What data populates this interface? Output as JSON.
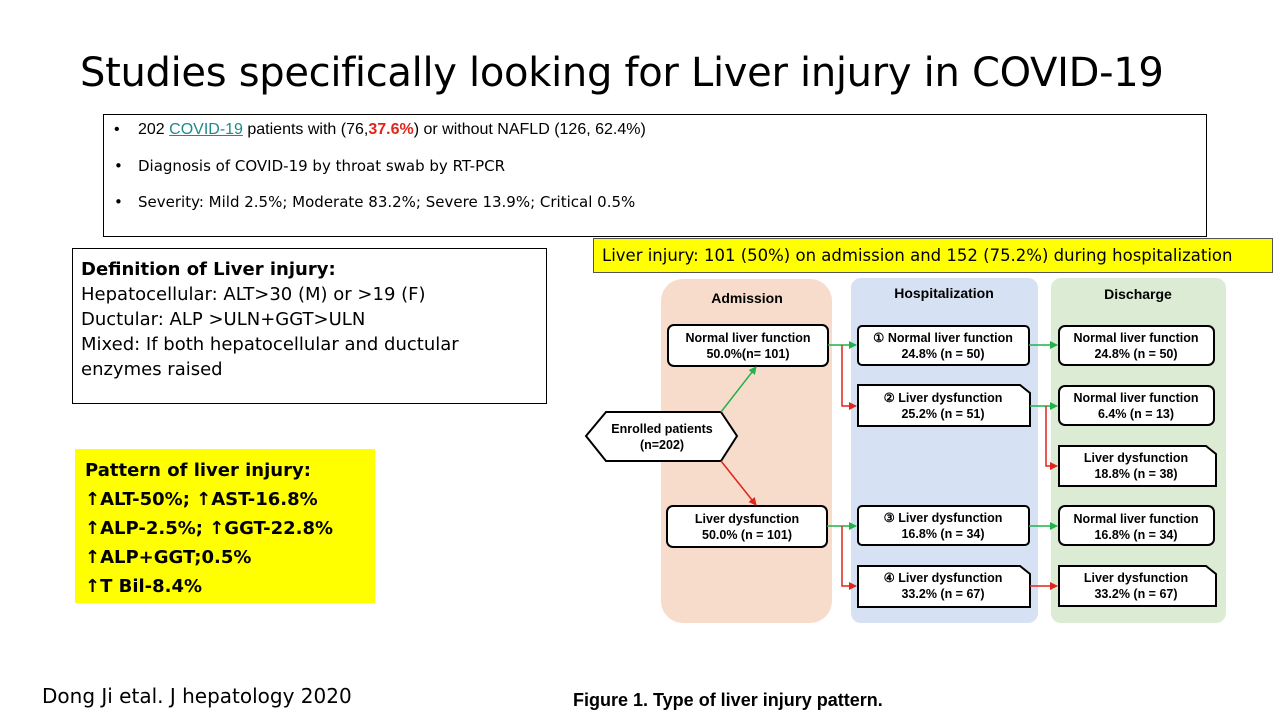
{
  "title": "Studies specifically looking for Liver injury in COVID-19",
  "intro": {
    "line1_pre": "202 ",
    "line1_link": "COVID-19",
    "line1_mid": " patients with (76,",
    "line1_red": "37.6%",
    "line1_post": ") or without NAFLD (126, 62.4%)",
    "line2": "Diagnosis of COVID-19 by throat swab by RT-PCR",
    "line3": "Severity: Mild 2.5%; Moderate 83.2%; Severe 13.9%; Critical 0.5%",
    "bullet": "•"
  },
  "definition": {
    "heading": "Definition of Liver injury:",
    "lines": [
      "Hepatocellular: ALT>30 (M) or >19 (F)",
      "Ductular: ALP >ULN+GGT>ULN",
      "Mixed: If both hepatocellular and ductular enzymes raised"
    ]
  },
  "pattern": {
    "heading": "Pattern of liver injury:",
    "lines": [
      "↑ALT-50%; ↑AST-16.8%",
      "↑ALP-2.5%; ↑GGT-22.8%",
      "↑ALP+GGT;0.5%",
      "↑T Bil-8.4%"
    ]
  },
  "injury_banner": "Liver injury: 101 (50%) on admission and 152 (75.2%) during hospitalization",
  "flowchart": {
    "columns": {
      "admission": "Admission",
      "hospitalization": "Hospitalization",
      "discharge": "Discharge"
    },
    "colors": {
      "admission_bg": "#f8dccb",
      "hospitalization_bg": "#d6e1f3",
      "discharge_bg": "#dcebd3",
      "green_arrow": "#22b14c",
      "red_arrow": "#e0251b"
    },
    "enrolled": {
      "line1": "Enrolled patients",
      "line2": "(n=202)"
    },
    "admission_nodes": [
      {
        "line1": "Normal liver function",
        "line2": "50.0%(n= 101)"
      },
      {
        "line1": "Liver dysfunction",
        "line2": "50.0% (n = 101)"
      }
    ],
    "hospital_nodes": [
      {
        "line1": "① Normal liver function",
        "line2": "24.8% (n = 50)"
      },
      {
        "line1": "② Liver dysfunction",
        "line2": "25.2% (n = 51)"
      },
      {
        "line1": "③ Liver dysfunction",
        "line2": "16.8% (n = 34)"
      },
      {
        "line1": "④ Liver dysfunction",
        "line2": "33.2% (n = 67)"
      }
    ],
    "discharge_nodes": [
      {
        "line1": "Normal liver function",
        "line2": "24.8% (n = 50)"
      },
      {
        "line1": "Normal liver function",
        "line2": "6.4% (n = 13)"
      },
      {
        "line1": "Liver dysfunction",
        "line2": "18.8% (n = 38)"
      },
      {
        "line1": "Normal liver function",
        "line2": "16.8% (n = 34)"
      },
      {
        "line1": "Liver dysfunction",
        "line2": "33.2% (n = 67)"
      }
    ]
  },
  "citation": "Dong Ji etal. J hepatology 2020",
  "caption": "Figure 1. Type of liver injury pattern."
}
